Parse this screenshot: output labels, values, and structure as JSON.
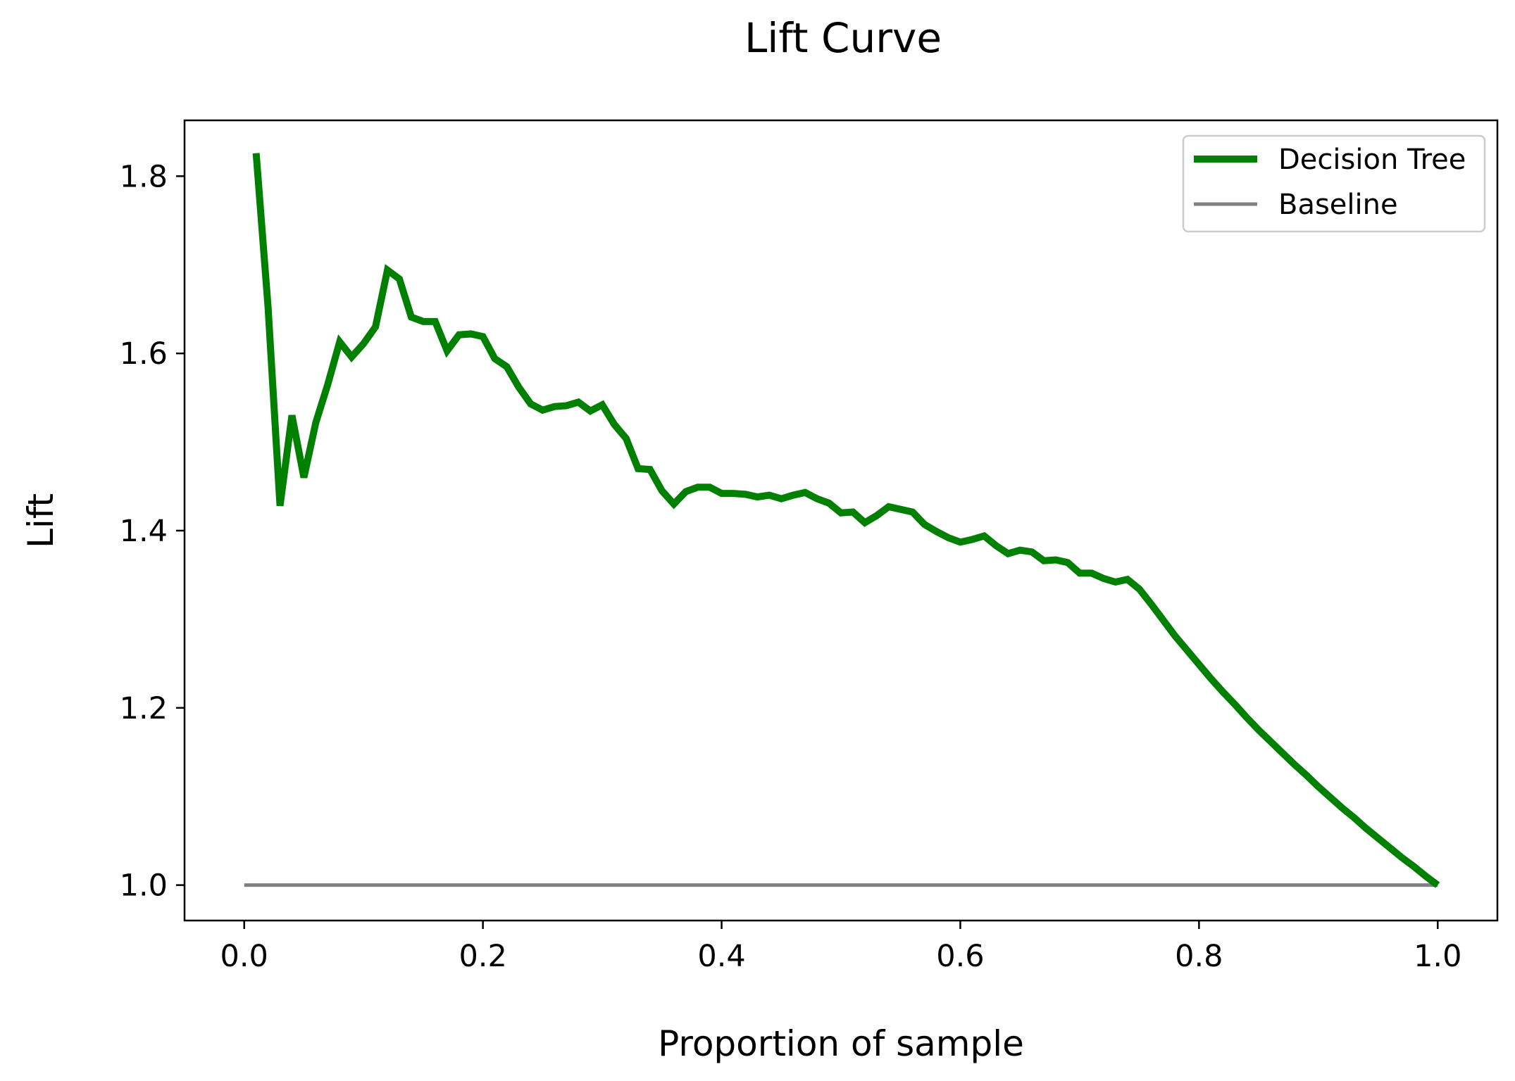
{
  "chart_data": {
    "type": "line",
    "title": "Lift Curve",
    "xlabel": "Proportion of sample",
    "ylabel": "Lift",
    "xlim": [
      -0.05,
      1.05
    ],
    "ylim": [
      0.96,
      1.863
    ],
    "xticks": [
      0.0,
      0.2,
      0.4,
      0.6,
      0.8,
      1.0
    ],
    "xtick_labels": [
      "0.0",
      "0.2",
      "0.4",
      "0.6",
      "0.8",
      "1.0"
    ],
    "yticks": [
      1.0,
      1.2,
      1.4,
      1.6,
      1.8
    ],
    "ytick_labels": [
      "1.0",
      "1.2",
      "1.4",
      "1.6",
      "1.8"
    ],
    "grid": false,
    "legend_position": "top-right",
    "series": [
      {
        "name": "Decision Tree",
        "color": "#008000",
        "x": [
          0.01,
          0.02,
          0.03,
          0.04,
          0.05,
          0.06,
          0.07,
          0.08,
          0.09,
          0.1,
          0.11,
          0.12,
          0.13,
          0.14,
          0.15,
          0.16,
          0.17,
          0.18,
          0.19,
          0.2,
          0.21,
          0.22,
          0.23,
          0.24,
          0.25,
          0.26,
          0.27,
          0.28,
          0.29,
          0.3,
          0.31,
          0.32,
          0.33,
          0.34,
          0.35,
          0.36,
          0.37,
          0.38,
          0.39,
          0.4,
          0.41,
          0.42,
          0.43,
          0.44,
          0.45,
          0.46,
          0.47,
          0.48,
          0.49,
          0.5,
          0.51,
          0.52,
          0.53,
          0.54,
          0.55,
          0.56,
          0.57,
          0.58,
          0.59,
          0.6,
          0.61,
          0.62,
          0.63,
          0.64,
          0.65,
          0.66,
          0.67,
          0.68,
          0.69,
          0.7,
          0.71,
          0.72,
          0.73,
          0.74,
          0.75,
          0.76,
          0.77,
          0.78,
          0.79,
          0.8,
          0.81,
          0.82,
          0.83,
          0.84,
          0.85,
          0.86,
          0.87,
          0.88,
          0.89,
          0.9,
          0.91,
          0.92,
          0.93,
          0.94,
          0.95,
          0.96,
          0.97,
          0.98,
          0.99,
          1.0
        ],
        "y": [
          1.826,
          1.652,
          1.428,
          1.53,
          1.46,
          1.522,
          1.565,
          1.613,
          1.596,
          1.611,
          1.63,
          1.694,
          1.684,
          1.641,
          1.636,
          1.636,
          1.603,
          1.621,
          1.622,
          1.619,
          1.594,
          1.585,
          1.562,
          1.543,
          1.536,
          1.54,
          1.541,
          1.545,
          1.535,
          1.542,
          1.52,
          1.504,
          1.47,
          1.469,
          1.445,
          1.43,
          1.444,
          1.449,
          1.449,
          1.442,
          1.442,
          1.441,
          1.438,
          1.44,
          1.436,
          1.44,
          1.443,
          1.436,
          1.431,
          1.42,
          1.421,
          1.409,
          1.417,
          1.427,
          1.424,
          1.421,
          1.407,
          1.399,
          1.392,
          1.387,
          1.39,
          1.394,
          1.383,
          1.374,
          1.378,
          1.376,
          1.366,
          1.367,
          1.364,
          1.352,
          1.352,
          1.346,
          1.342,
          1.345,
          1.334,
          1.317,
          1.299,
          1.281,
          1.265,
          1.249,
          1.233,
          1.218,
          1.204,
          1.189,
          1.175,
          1.162,
          1.149,
          1.136,
          1.124,
          1.111,
          1.099,
          1.087,
          1.076,
          1.064,
          1.053,
          1.042,
          1.031,
          1.021,
          1.01,
          1.0
        ]
      },
      {
        "name": "Baseline",
        "color": "#808080",
        "x": [
          0.0,
          1.0
        ],
        "y": [
          1.0,
          1.0
        ]
      }
    ]
  }
}
